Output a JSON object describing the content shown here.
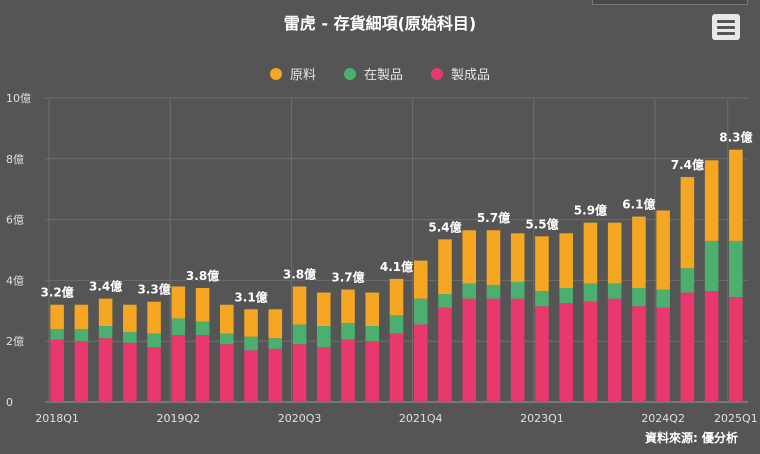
{
  "title": "雷虎 - 存貨細項(原始科目)",
  "source": "資料來源: 優分析",
  "colors": {
    "raw": "#f5a623",
    "wip": "#4caf6f",
    "finished": "#e8386d"
  },
  "legend": [
    {
      "name": "原料",
      "color": "#f5a623"
    },
    {
      "name": "在製品",
      "color": "#4caf6f"
    },
    {
      "name": "製成品",
      "color": "#e8386d"
    }
  ],
  "chart_data": {
    "type": "bar",
    "stacked": true,
    "categories": [
      "2018Q1",
      "2018Q2",
      "2018Q3",
      "2018Q4",
      "2019Q1",
      "2019Q2",
      "2019Q3",
      "2019Q4",
      "2020Q1",
      "2020Q2",
      "2020Q3",
      "2020Q4",
      "2021Q1",
      "2021Q2",
      "2021Q3",
      "2021Q4",
      "2022Q1",
      "2022Q2",
      "2022Q3",
      "2022Q4",
      "2023Q1",
      "2023Q2",
      "2023Q3",
      "2023Q4",
      "2024Q1",
      "2024Q2",
      "2024Q3",
      "2024Q4",
      "2025Q1"
    ],
    "xtick_labels": [
      "2018Q1",
      "2019Q2",
      "2020Q3",
      "2021Q4",
      "2023Q1",
      "2024Q2",
      "2025Q1"
    ],
    "ylim": [
      0,
      10
    ],
    "yticks": [
      "0",
      "2億",
      "4億",
      "6億",
      "8億",
      "10億"
    ],
    "unit": "億",
    "series": [
      {
        "name": "製成品",
        "values": [
          2.05,
          2.0,
          2.1,
          1.95,
          1.8,
          2.2,
          2.2,
          1.9,
          1.7,
          1.75,
          1.9,
          1.8,
          2.05,
          2.0,
          2.25,
          2.55,
          3.1,
          3.4,
          3.4,
          3.4,
          3.15,
          3.25,
          3.3,
          3.4,
          3.15,
          3.1,
          3.6,
          3.65,
          3.45
        ]
      },
      {
        "name": "在製品",
        "values": [
          0.35,
          0.4,
          0.4,
          0.35,
          0.45,
          0.55,
          0.45,
          0.35,
          0.45,
          0.35,
          0.65,
          0.7,
          0.55,
          0.5,
          0.6,
          0.85,
          0.45,
          0.5,
          0.45,
          0.55,
          0.5,
          0.5,
          0.6,
          0.5,
          0.6,
          0.6,
          0.8,
          1.65,
          1.85
        ]
      },
      {
        "name": "原料",
        "values": [
          0.8,
          0.8,
          0.9,
          0.9,
          1.05,
          1.05,
          1.1,
          0.95,
          0.9,
          0.95,
          1.25,
          1.1,
          1.1,
          1.1,
          1.2,
          1.25,
          1.8,
          1.75,
          1.8,
          1.6,
          1.8,
          1.8,
          2.0,
          2.0,
          2.35,
          2.6,
          3.0,
          2.65,
          3.0
        ]
      }
    ],
    "data_labels": [
      {
        "index": 0,
        "text": "3.2億"
      },
      {
        "index": 2,
        "text": "3.4億"
      },
      {
        "index": 4,
        "text": "3.3億"
      },
      {
        "index": 6,
        "text": "3.8億"
      },
      {
        "index": 8,
        "text": "3.1億"
      },
      {
        "index": 10,
        "text": "3.8億"
      },
      {
        "index": 12,
        "text": "3.7億"
      },
      {
        "index": 14,
        "text": "4.1億"
      },
      {
        "index": 16,
        "text": "5.4億"
      },
      {
        "index": 18,
        "text": "5.7億"
      },
      {
        "index": 20,
        "text": "5.5億"
      },
      {
        "index": 22,
        "text": "5.9億"
      },
      {
        "index": 24,
        "text": "6.1億"
      },
      {
        "index": 26,
        "text": "7.4億"
      },
      {
        "index": 28,
        "text": "8.3億"
      }
    ]
  }
}
